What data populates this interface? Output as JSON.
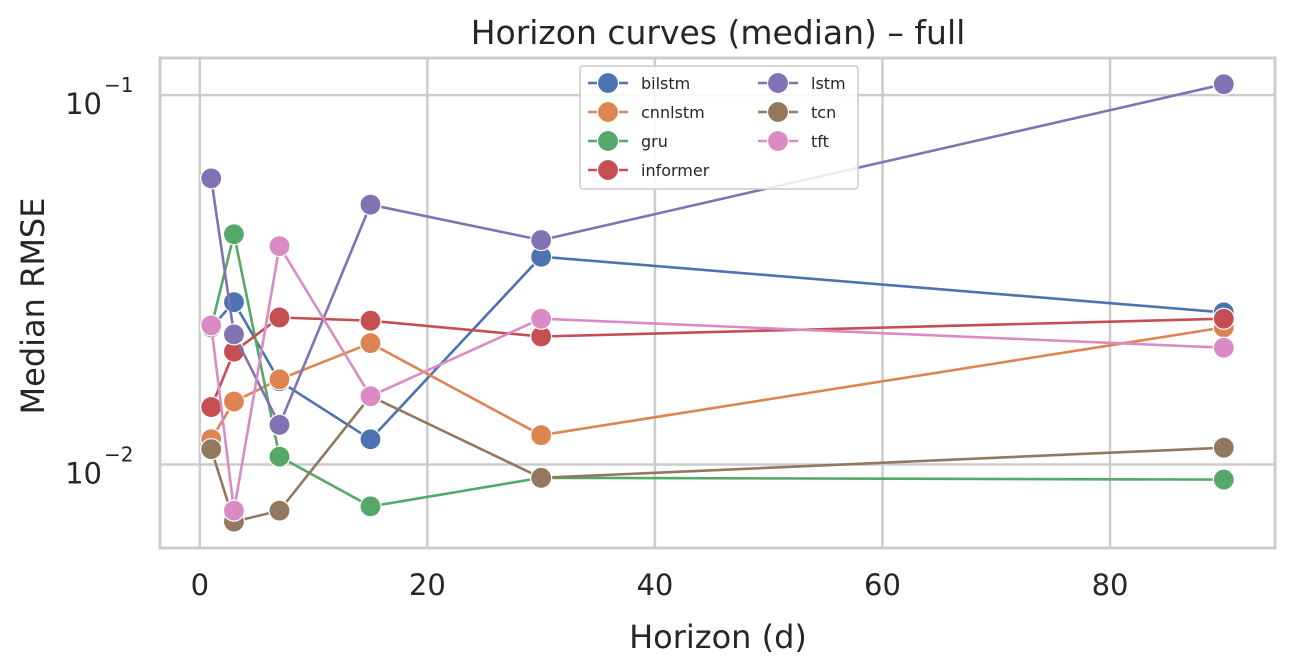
{
  "chart_data": {
    "type": "line",
    "title": "Horizon curves (median) – full",
    "xlabel": "Horizon (d)",
    "ylabel": "Median RMSE",
    "yscale": "log",
    "xlim": [
      -3.5,
      94.5
    ],
    "ylim": [
      0.00594,
      0.126
    ],
    "xticks": [
      0,
      20,
      40,
      60,
      80
    ],
    "xtick_labels": [
      "0",
      "20",
      "40",
      "60",
      "80"
    ],
    "yticks": [
      0.01,
      0.1
    ],
    "ytick_labels": [
      {
        "base": "10",
        "exp": "−2"
      },
      {
        "base": "10",
        "exp": "−1"
      }
    ],
    "grid": true,
    "legend": {
      "position": "top-center",
      "columns": 2
    },
    "x": [
      1,
      3,
      7,
      15,
      30,
      90
    ],
    "series": [
      {
        "name": "bilstm",
        "color": "#4c72b0",
        "values": [
          0.0235,
          0.0275,
          0.0168,
          0.0117,
          0.0365,
          0.0258
        ]
      },
      {
        "name": "cnnlstm",
        "color": "#dd8452",
        "values": [
          0.0117,
          0.0148,
          0.017,
          0.0213,
          0.012,
          0.0235
        ]
      },
      {
        "name": "gru",
        "color": "#55a868",
        "values": [
          0.0235,
          0.042,
          0.0105,
          0.0077,
          0.0092,
          0.0091
        ]
      },
      {
        "name": "informer",
        "color": "#c44e52",
        "values": [
          0.0143,
          0.0202,
          0.025,
          0.0245,
          0.0222,
          0.0248
        ]
      },
      {
        "name": "lstm",
        "color": "#8172b3",
        "values": [
          0.0595,
          0.0225,
          0.0128,
          0.0505,
          0.0405,
          0.107
        ]
      },
      {
        "name": "tcn",
        "color": "#937860",
        "values": [
          0.011,
          0.007,
          0.0075,
          0.0153,
          0.0092,
          0.0111
        ]
      },
      {
        "name": "tft",
        "color": "#da8bc3",
        "values": [
          0.0238,
          0.0075,
          0.039,
          0.0153,
          0.0248,
          0.0207
        ]
      }
    ]
  }
}
